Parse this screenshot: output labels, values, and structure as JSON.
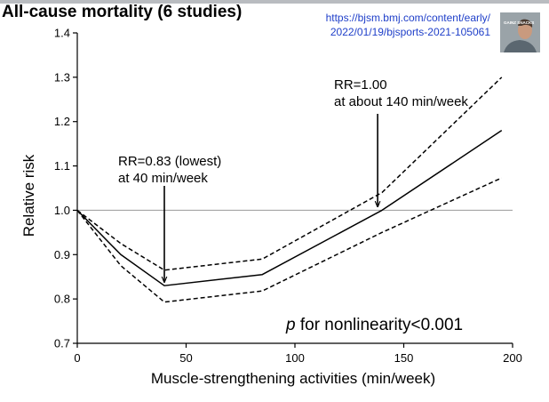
{
  "title": "All-cause mortality (6 studies)",
  "source_url": {
    "line1": "https://bjsm.bmj.com/content/early/",
    "line2": "2022/01/19/bjsports-2021-105061"
  },
  "logo": {
    "label": "GAINZ SNACKS",
    "colors": {
      "background": "#9aa3a8",
      "face": "#c99a7e",
      "hair": "#4a3a30",
      "shirt": "#5b6770"
    }
  },
  "chart_data": {
    "type": "line",
    "xlabel": "Muscle-strengthening activities (min/week)",
    "ylabel": "Relative risk",
    "xlim": [
      0,
      200
    ],
    "ylim": [
      0.7,
      1.4
    ],
    "x_ticks": [
      0,
      50,
      100,
      150,
      200
    ],
    "y_ticks": [
      "0.7",
      "0.8",
      "0.9",
      "1.0",
      "1.1",
      "1.2",
      "1.3",
      "1.4"
    ],
    "grid": false,
    "reference_line": {
      "y": 1.0,
      "color": "#999999"
    },
    "series": [
      {
        "style": "solid",
        "x": [
          0,
          20,
          40,
          85,
          140,
          195
        ],
        "y": [
          1.0,
          0.9,
          0.83,
          0.855,
          1.0,
          1.18
        ]
      },
      {
        "style": "dashed",
        "x": [
          0,
          20,
          40,
          85,
          140,
          195
        ],
        "y": [
          1.0,
          0.925,
          0.865,
          0.89,
          1.04,
          1.3
        ]
      },
      {
        "style": "dashed",
        "x": [
          0,
          20,
          40,
          85,
          140,
          195
        ],
        "y": [
          1.0,
          0.875,
          0.793,
          0.818,
          0.95,
          1.073
        ]
      }
    ],
    "annotations": [
      {
        "lines": [
          "RR=0.83 (lowest)",
          "at 40 min/week"
        ],
        "arrow_to": {
          "x": 40,
          "y": 0.83
        }
      },
      {
        "lines": [
          "RR=1.00",
          "at about 140 min/week"
        ],
        "arrow_to": {
          "x": 138,
          "y": 1.0
        }
      }
    ],
    "note": {
      "italic": "p",
      "text": " for nonlinearity<0.001"
    }
  }
}
